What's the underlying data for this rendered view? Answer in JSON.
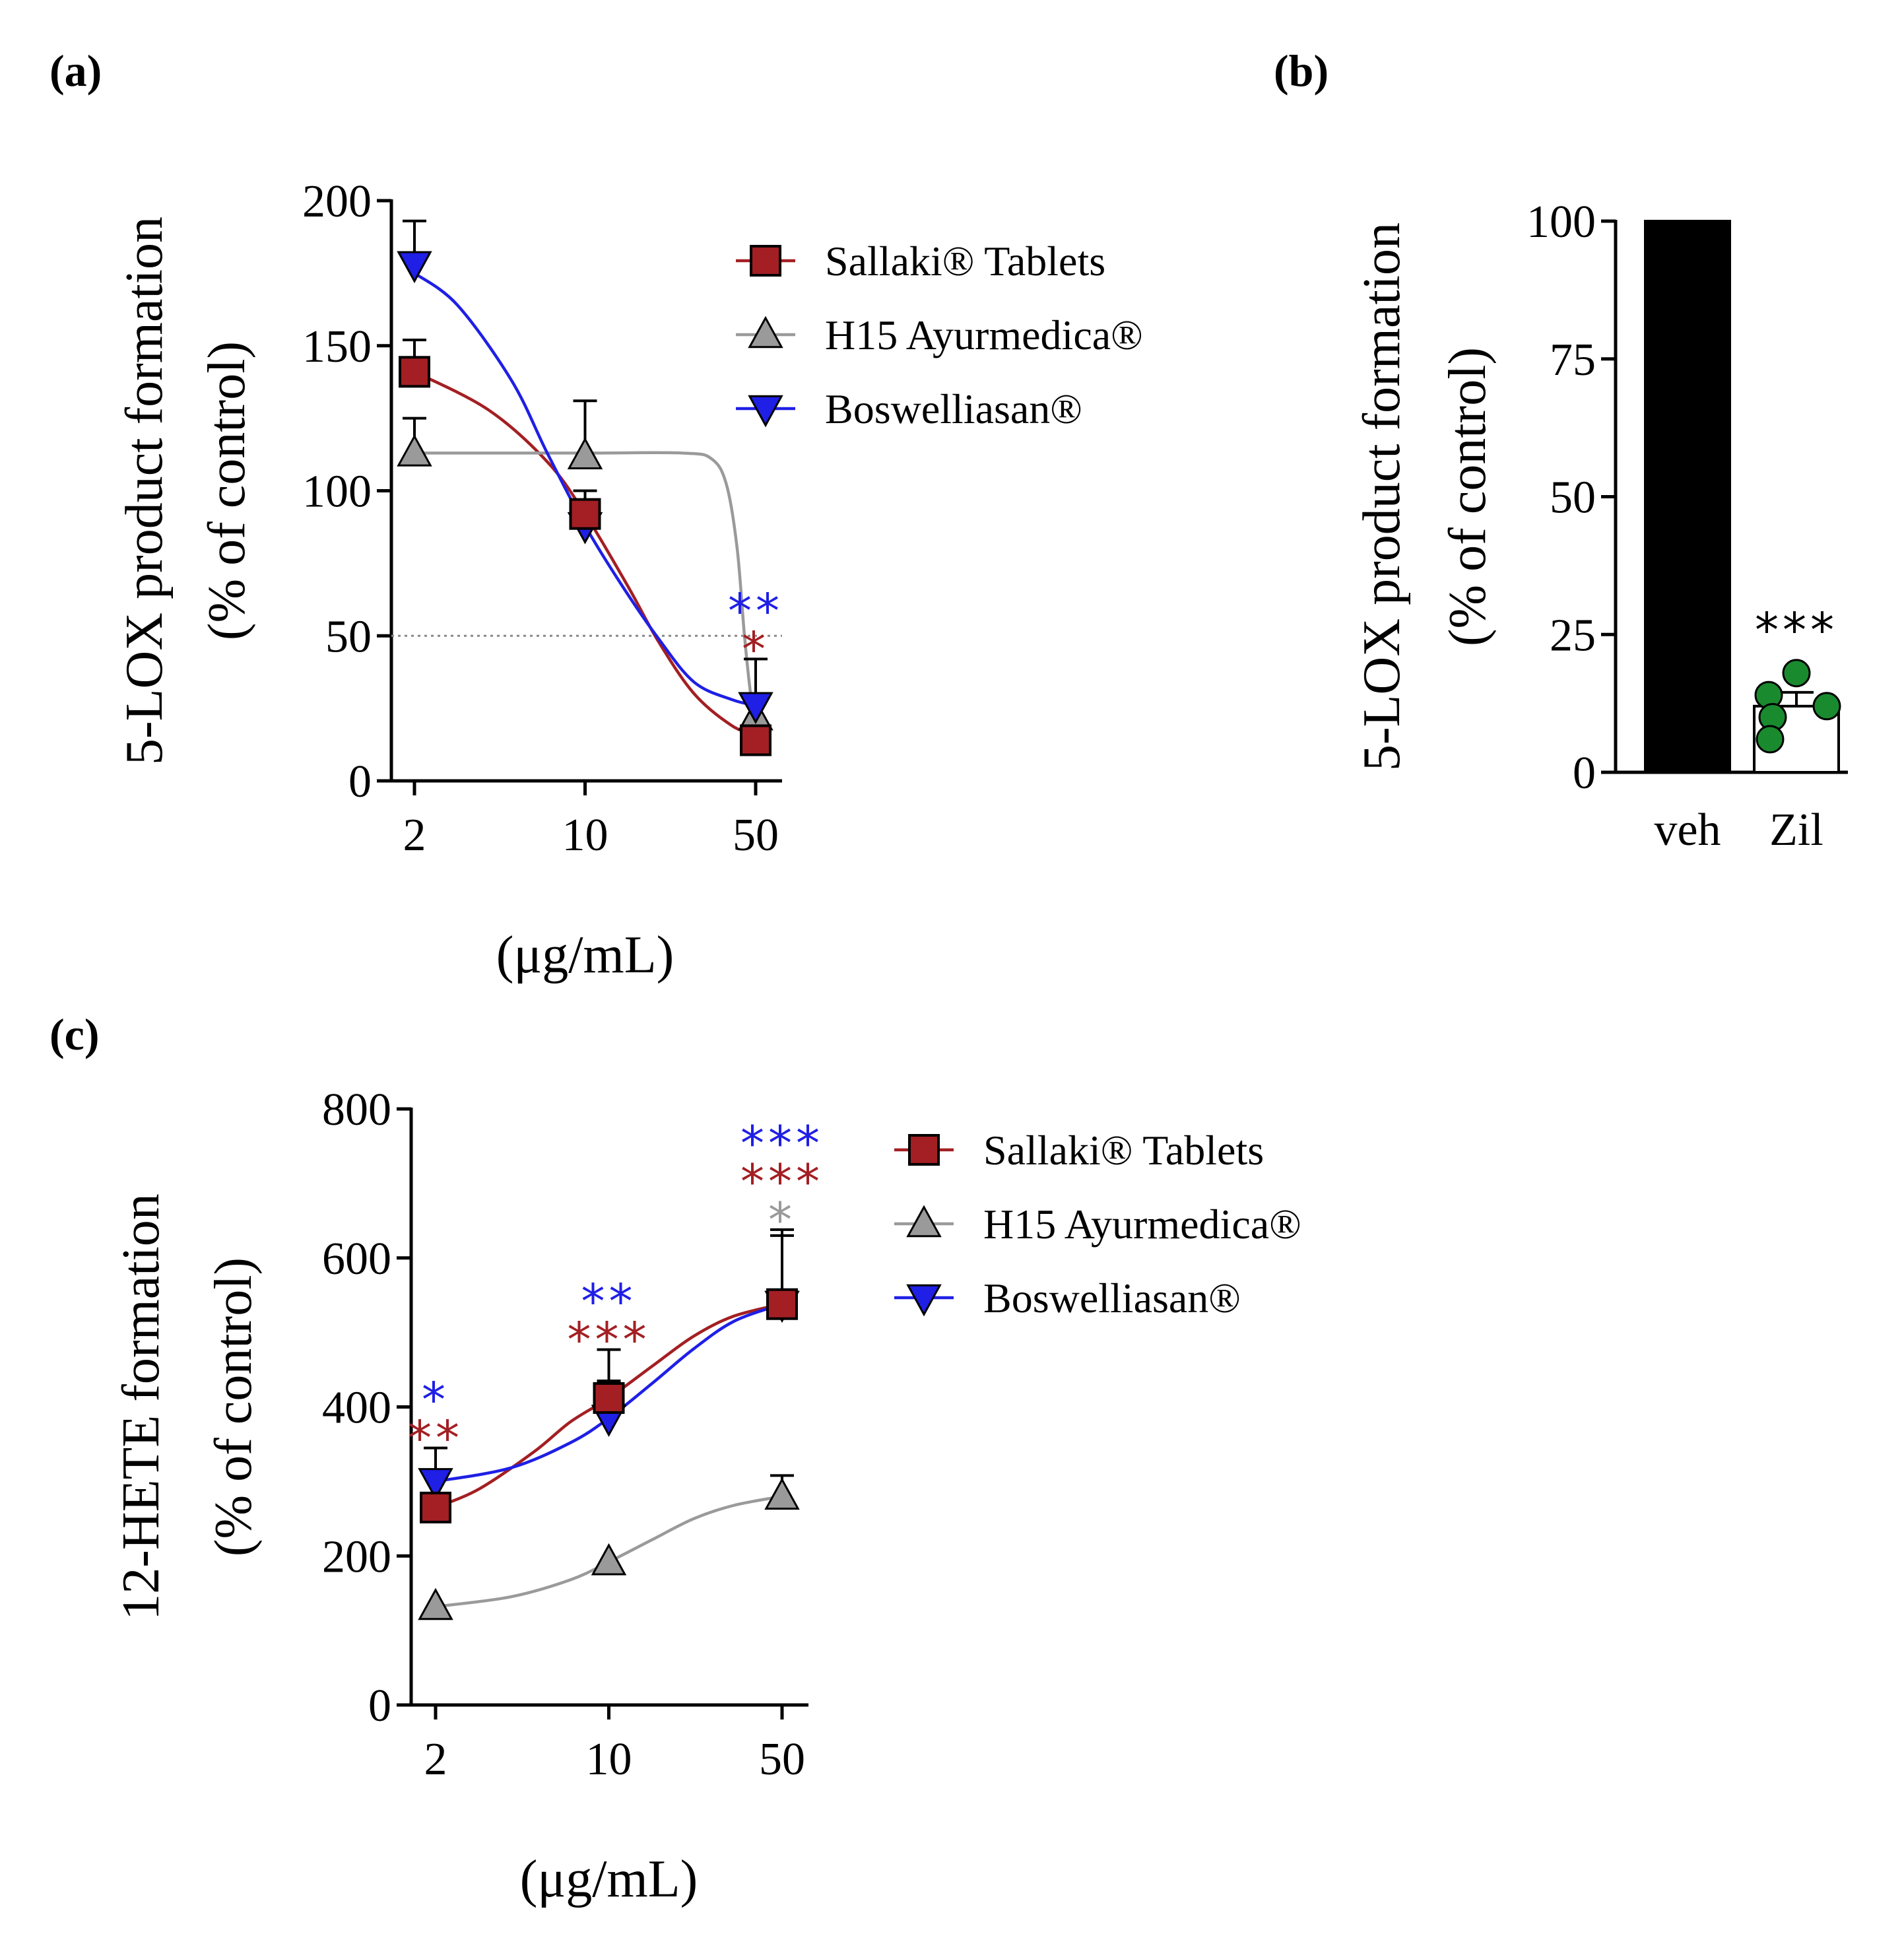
{
  "chart_data": [
    {
      "id": "a",
      "type": "line",
      "panel_label": "(a)",
      "ylabel_line1": "5-LOX product formation",
      "ylabel_line2": "(% of control)",
      "xlabel": "(μg/mL)",
      "x": [
        2,
        10,
        50
      ],
      "x_tick_labels": [
        "2",
        "10",
        "50"
      ],
      "x_scale": "log",
      "ylim": [
        0,
        200
      ],
      "y_ticks": [
        0,
        50,
        100,
        150,
        200
      ],
      "reference_line": 50,
      "series": [
        {
          "name": "Sallaki® Tablets",
          "color": "#a31f23",
          "marker": "square",
          "values": [
            141,
            92,
            14
          ],
          "errors": [
            11,
            8,
            0
          ],
          "fit": [
            [
              2,
              141
            ],
            [
              4,
              128
            ],
            [
              7,
              110
            ],
            [
              10,
              92
            ],
            [
              15,
              67
            ],
            [
              20,
              48
            ],
            [
              28,
              30
            ],
            [
              40,
              19
            ],
            [
              50,
              16
            ]
          ]
        },
        {
          "name": "H15 Ayurmedica®",
          "color": "#9a9a9a",
          "marker": "triangle-up",
          "values": [
            113,
            112,
            22
          ],
          "errors": [
            12,
            19,
            0
          ],
          "fit": [
            [
              2,
              113
            ],
            [
              10,
              113
            ],
            [
              25,
              113
            ],
            [
              33,
              111
            ],
            [
              38,
              102
            ],
            [
              42,
              80
            ],
            [
              45,
              50
            ],
            [
              48,
              28
            ],
            [
              50,
              22
            ]
          ]
        },
        {
          "name": "Boswelliasan®",
          "color": "#1f1fe6",
          "marker": "triangle-down",
          "values": [
            178,
            88,
            26
          ],
          "errors": [
            15,
            0,
            16
          ],
          "fit": [
            [
              2,
              175
            ],
            [
              3,
              164
            ],
            [
              5,
              138
            ],
            [
              7,
              113
            ],
            [
              10,
              88
            ],
            [
              14,
              68
            ],
            [
              20,
              49
            ],
            [
              28,
              34
            ],
            [
              40,
              28
            ],
            [
              50,
              26
            ]
          ]
        }
      ],
      "annotations": [
        {
          "text": "**",
          "color": "#1f1fe6",
          "x": 50,
          "series": "Boswelliasan®"
        },
        {
          "text": "*",
          "color": "#a31f23",
          "x": 50,
          "series": "Sallaki® Tablets"
        }
      ]
    },
    {
      "id": "b",
      "type": "bar",
      "panel_label": "(b)",
      "ylabel_line1": "5-LOX product formation",
      "ylabel_line2": "(% of control)",
      "categories": [
        "veh",
        "Zil"
      ],
      "values": [
        100,
        12
      ],
      "error": [
        0,
        2.5
      ],
      "bar_colors": [
        "#000000",
        "#ffffff"
      ],
      "points": [
        [],
        [
          18,
          14,
          12,
          10,
          6
        ]
      ],
      "point_color": "#1a8a2e",
      "ylim": [
        0,
        100
      ],
      "y_ticks": [
        0,
        25,
        50,
        75,
        100
      ],
      "annotations": [
        {
          "text": "***",
          "category": "Zil"
        }
      ]
    },
    {
      "id": "c",
      "type": "line",
      "panel_label": "(c)",
      "ylabel_line1": "12-HETE formation",
      "ylabel_line2": "(% of control)",
      "xlabel": "(μg/mL)",
      "x": [
        2,
        10,
        50
      ],
      "x_tick_labels": [
        "2",
        "10",
        "50"
      ],
      "x_scale": "log",
      "ylim": [
        0,
        800
      ],
      "y_ticks": [
        0,
        200,
        400,
        600,
        800
      ],
      "series": [
        {
          "name": "Sallaki® Tablets",
          "color": "#a31f23",
          "marker": "square",
          "values": [
            265,
            412,
            538
          ],
          "errors": [
            0,
            65,
            100
          ],
          "fit": [
            [
              2,
              265
            ],
            [
              3,
              290
            ],
            [
              5,
              340
            ],
            [
              7,
              380
            ],
            [
              10,
              412
            ],
            [
              15,
              455
            ],
            [
              22,
              495
            ],
            [
              32,
              522
            ],
            [
              50,
              538
            ]
          ]
        },
        {
          "name": "H15 Ayurmedica®",
          "color": "#9a9a9a",
          "marker": "triangle-up",
          "values": [
            132,
            192,
            280
          ],
          "errors": [
            0,
            0,
            28
          ],
          "fit": [
            [
              2,
              132
            ],
            [
              4,
              145
            ],
            [
              7,
              168
            ],
            [
              10,
              192
            ],
            [
              15,
              222
            ],
            [
              22,
              250
            ],
            [
              32,
              268
            ],
            [
              50,
              280
            ]
          ]
        },
        {
          "name": "Boswelliasan®",
          "color": "#1f1fe6",
          "marker": "triangle-down",
          "values": [
            300,
            385,
            538
          ],
          "errors": [
            45,
            50,
            92
          ],
          "fit": [
            [
              2,
              300
            ],
            [
              4,
              318
            ],
            [
              7,
              352
            ],
            [
              10,
              385
            ],
            [
              15,
              432
            ],
            [
              22,
              478
            ],
            [
              32,
              515
            ],
            [
              50,
              538
            ]
          ]
        }
      ],
      "annotations": [
        {
          "text": "*",
          "color": "#1f1fe6",
          "x": 2,
          "series": "Boswelliasan®"
        },
        {
          "text": "**",
          "color": "#a31f23",
          "x": 2,
          "series": "Sallaki® Tablets"
        },
        {
          "text": "**",
          "color": "#1f1fe6",
          "x": 10,
          "series": "Boswelliasan®"
        },
        {
          "text": "***",
          "color": "#a31f23",
          "x": 10,
          "series": "Sallaki® Tablets"
        },
        {
          "text": "***",
          "color": "#1f1fe6",
          "x": 50,
          "series": "Boswelliasan®"
        },
        {
          "text": "***",
          "color": "#a31f23",
          "x": 50,
          "series": "Sallaki® Tablets"
        },
        {
          "text": "*",
          "color": "#9a9a9a",
          "x": 50,
          "series": "H15 Ayurmedica®"
        }
      ]
    }
  ]
}
